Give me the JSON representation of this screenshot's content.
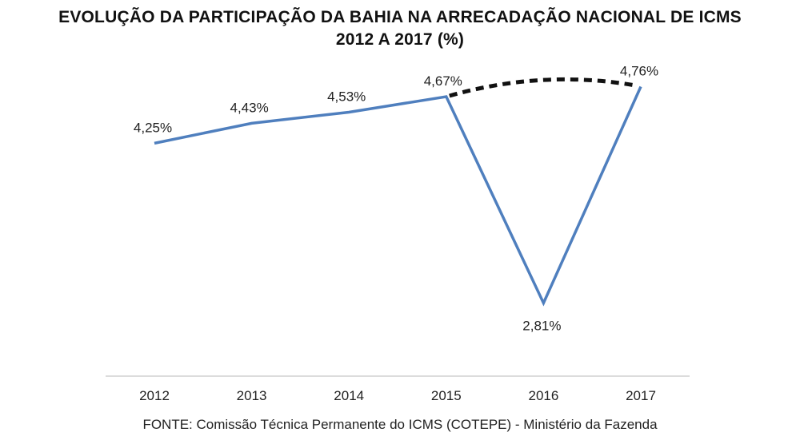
{
  "title_line1": "EVOLUÇÃO DA PARTICIPAÇÃO DA BAHIA NA ARRECADAÇÃO NACIONAL DE ICMS",
  "title_line2": "2012 A 2017 (%)",
  "source": "FONTE: Comissão Técnica Permanente do ICMS (COTEPE) - Ministério da Fazenda",
  "colors": {
    "line": "#4f7fbe",
    "dashed": "#111111",
    "axis": "#d0d0d0",
    "text": "#222222"
  },
  "chart_data": {
    "type": "line",
    "title": "EVOLUÇÃO DA PARTICIPAÇÃO DA BAHIA NA ARRECADAÇÃO NACIONAL DE ICMS 2012 A 2017 (%)",
    "categories": [
      "2012",
      "2013",
      "2014",
      "2015",
      "2016",
      "2017"
    ],
    "values": [
      4.25,
      4.43,
      4.53,
      4.67,
      2.81,
      4.76
    ],
    "data_labels": [
      "4,25%",
      "4,43%",
      "4,53%",
      "4,67%",
      "2,81%",
      "4,76%"
    ],
    "dashed_connector": {
      "from": "2015",
      "to": "2017",
      "style": "dotted"
    },
    "ylim": [
      1.3,
      5.4
    ],
    "grid": false,
    "xlabel": "",
    "ylabel": ""
  }
}
